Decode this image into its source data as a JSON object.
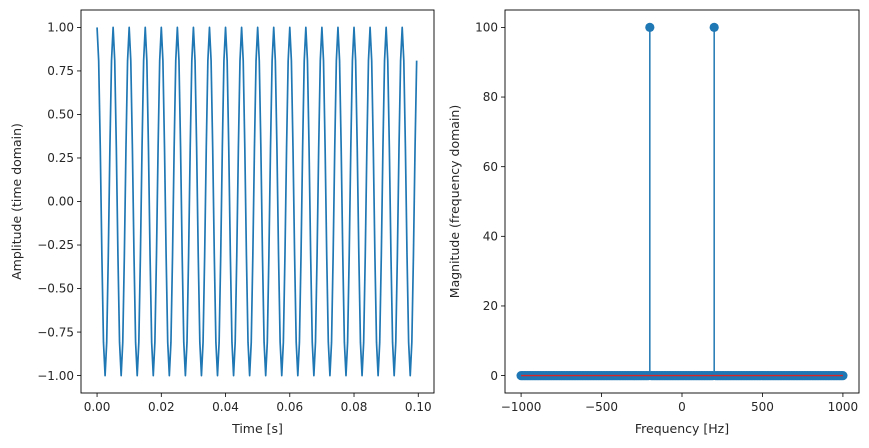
{
  "chart_data": [
    {
      "type": "line",
      "xlabel": "Time [s]",
      "ylabel": "Amplitude (time domain)",
      "xlim": [
        -0.005,
        0.1049
      ],
      "ylim": [
        -1.1,
        1.1
      ],
      "xticks": [
        0.0,
        0.02,
        0.04,
        0.06,
        0.08,
        0.1
      ],
      "xtick_labels": [
        "0.00",
        "0.02",
        "0.04",
        "0.06",
        "0.08",
        "0.10"
      ],
      "yticks": [
        1.0,
        0.75,
        0.5,
        0.25,
        0.0,
        -0.25,
        -0.5,
        -0.75,
        -1.0
      ],
      "ytick_labels": [
        "1.00",
        "0.75",
        "0.50",
        "0.25",
        "0.00",
        "−0.25",
        "−0.50",
        "−0.75",
        "−1.00"
      ],
      "grid": false,
      "signal": {
        "kind": "cosine",
        "frequency_hz": 200,
        "amplitude": 1.0,
        "sample_rate_hz": 2000,
        "t_start": 0.0,
        "t_end": 0.0995,
        "step": 0.0005
      },
      "color": "#1f77b4"
    },
    {
      "type": "stem",
      "xlabel": "Frequency [Hz]",
      "ylabel": "Magnitude (frequency domain)",
      "xlim": [
        -1100,
        1100
      ],
      "ylim": [
        -5,
        105
      ],
      "xticks": [
        -1000,
        -500,
        0,
        500,
        1000
      ],
      "xtick_labels": [
        "−1000",
        "−500",
        "0",
        "500",
        "1000"
      ],
      "yticks": [
        0,
        20,
        40,
        60,
        80,
        100
      ],
      "ytick_labels": [
        "0",
        "20",
        "40",
        "60",
        "80",
        "100"
      ],
      "grid": false,
      "frequency_grid": {
        "start": -1000,
        "end": 1000,
        "step": 10
      },
      "peaks": [
        {
          "x": -200,
          "y": 100
        },
        {
          "x": 200,
          "y": 100
        }
      ],
      "baseline_value": 0,
      "marker_color": "#1f77b4",
      "baseline_color": "#d62728"
    }
  ]
}
